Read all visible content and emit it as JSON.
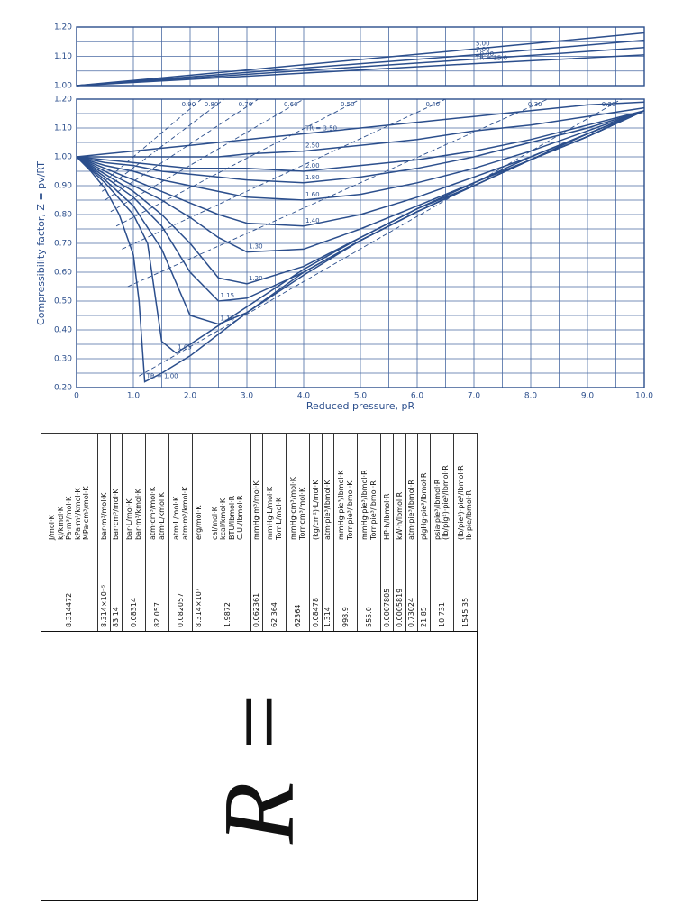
{
  "chart_data": [
    {
      "type": "line",
      "color": "#2b4e8c",
      "xlim": [
        0,
        10
      ],
      "ylim": [
        1.0,
        1.2
      ],
      "yticks": [
        {
          "value": 1.0,
          "label": "1.00"
        },
        {
          "value": 1.1,
          "label": "1.10"
        },
        {
          "value": 1.2,
          "label": "1.20"
        }
      ],
      "series": [
        {
          "name": "5.00",
          "x": [
            0,
            7,
            10
          ],
          "values": [
            1.0,
            1.125,
            1.18
          ]
        },
        {
          "name": "7.00",
          "x": [
            0,
            7,
            10
          ],
          "values": [
            1.0,
            1.105,
            1.155
          ]
        },
        {
          "name": "10.00",
          "x": [
            0,
            7,
            10
          ],
          "values": [
            1.0,
            1.09,
            1.13
          ]
        },
        {
          "name": "TR = 15.0",
          "x": [
            0,
            7,
            10
          ],
          "values": [
            1.0,
            1.075,
            1.105
          ]
        }
      ]
    },
    {
      "type": "line",
      "color": "#2b4e8c",
      "x_label": "Reduced pressure, pR",
      "y_label": "Compressibility factor, Z = pv/RT",
      "xlim": [
        0,
        10
      ],
      "ylim": [
        0.2,
        1.2
      ],
      "xticks": [
        0,
        {
          "value": 1,
          "label": "1.0"
        },
        {
          "value": 2,
          "label": "2.0"
        },
        {
          "value": 3,
          "label": "3.0"
        },
        {
          "value": 4,
          "label": "4.0"
        },
        {
          "value": 5,
          "label": "5.0"
        },
        {
          "value": 6,
          "label": "6.0"
        },
        {
          "value": 7,
          "label": "7.0"
        },
        {
          "value": 8,
          "label": "8.0"
        },
        {
          "value": 9,
          "label": "9.0"
        },
        {
          "value": 10,
          "label": "10.0"
        }
      ],
      "yticks": [
        {
          "value": 0.2,
          "label": "0.20"
        },
        {
          "value": 0.3,
          "label": "0.30"
        },
        {
          "value": 0.4,
          "label": "0.40"
        },
        {
          "value": 0.5,
          "label": "0.50"
        },
        {
          "value": 0.6,
          "label": "0.60"
        },
        {
          "value": 0.7,
          "label": "0.70"
        },
        {
          "value": 0.8,
          "label": "0.80"
        },
        {
          "value": 0.9,
          "label": "0.90"
        },
        {
          "value": 1.0,
          "label": "1.00"
        },
        {
          "value": 1.1,
          "label": "1.10"
        },
        {
          "value": 1.2,
          "label": "1.20"
        }
      ],
      "series": [
        {
          "name": "TR = 1.00",
          "x": [
            0,
            0.25,
            0.5,
            0.75,
            1.0,
            1.1,
            1.2,
            1.5,
            2,
            3,
            4,
            5,
            6,
            7,
            8,
            9,
            10
          ],
          "values": [
            1.0,
            0.95,
            0.89,
            0.8,
            0.66,
            0.5,
            0.22,
            0.25,
            0.31,
            0.46,
            0.6,
            0.71,
            0.81,
            0.9,
            0.99,
            1.08,
            1.16
          ]
        },
        {
          "name": "1.05",
          "x": [
            0,
            0.5,
            1,
            1.25,
            1.5,
            1.75,
            2,
            3,
            4,
            5,
            6,
            7,
            8,
            9,
            10
          ],
          "values": [
            1.0,
            0.91,
            0.8,
            0.7,
            0.36,
            0.32,
            0.35,
            0.48,
            0.61,
            0.72,
            0.82,
            0.91,
            1.0,
            1.08,
            1.16
          ]
        },
        {
          "name": "1.10",
          "x": [
            0,
            0.5,
            1,
            1.5,
            2,
            2.5,
            3,
            4,
            5,
            6,
            7,
            8,
            9,
            10
          ],
          "values": [
            1.0,
            0.92,
            0.83,
            0.68,
            0.45,
            0.42,
            0.46,
            0.59,
            0.71,
            0.81,
            0.9,
            0.99,
            1.07,
            1.16
          ]
        },
        {
          "name": "1.15",
          "x": [
            0,
            0.5,
            1,
            1.5,
            2,
            2.5,
            3,
            4,
            5,
            6,
            7,
            8,
            9,
            10
          ],
          "values": [
            1.0,
            0.93,
            0.86,
            0.76,
            0.6,
            0.5,
            0.51,
            0.6,
            0.71,
            0.81,
            0.9,
            0.99,
            1.07,
            1.16
          ]
        },
        {
          "name": "1.20",
          "x": [
            0,
            0.5,
            1,
            1.5,
            2,
            2.5,
            3,
            4,
            5,
            6,
            7,
            8,
            9,
            10
          ],
          "values": [
            1.0,
            0.94,
            0.88,
            0.8,
            0.7,
            0.58,
            0.56,
            0.62,
            0.72,
            0.82,
            0.9,
            0.99,
            1.07,
            1.16
          ]
        },
        {
          "name": "1.30",
          "x": [
            0,
            0.5,
            1,
            1.5,
            2,
            2.5,
            3,
            4,
            5,
            6,
            7,
            8,
            9,
            10
          ],
          "values": [
            1.0,
            0.95,
            0.9,
            0.85,
            0.79,
            0.72,
            0.67,
            0.68,
            0.75,
            0.83,
            0.91,
            0.99,
            1.07,
            1.16
          ]
        },
        {
          "name": "1.40",
          "x": [
            0,
            0.5,
            1,
            1.5,
            2,
            2.5,
            3,
            4,
            5,
            6,
            7,
            8,
            9,
            10
          ],
          "values": [
            1.0,
            0.96,
            0.92,
            0.88,
            0.84,
            0.8,
            0.77,
            0.76,
            0.8,
            0.86,
            0.93,
            1.0,
            1.08,
            1.16
          ]
        },
        {
          "name": "1.60",
          "x": [
            0,
            0.5,
            1,
            1.5,
            2,
            2.5,
            3,
            4,
            5,
            6,
            7,
            8,
            9,
            10
          ],
          "values": [
            1.0,
            0.97,
            0.95,
            0.92,
            0.9,
            0.88,
            0.86,
            0.85,
            0.87,
            0.91,
            0.96,
            1.02,
            1.09,
            1.16
          ]
        },
        {
          "name": "1.80",
          "x": [
            0,
            0.5,
            1,
            1.5,
            2,
            2.5,
            3,
            4,
            5,
            6,
            7,
            8,
            9,
            10
          ],
          "values": [
            1.0,
            0.98,
            0.97,
            0.95,
            0.94,
            0.93,
            0.92,
            0.91,
            0.93,
            0.96,
            1.0,
            1.05,
            1.1,
            1.16
          ]
        },
        {
          "name": "2.00",
          "x": [
            0,
            0.5,
            1,
            1.5,
            2,
            2.5,
            3,
            4,
            5,
            6,
            7,
            8,
            9,
            10
          ],
          "values": [
            1.0,
            0.99,
            0.98,
            0.97,
            0.96,
            0.96,
            0.96,
            0.95,
            0.97,
            0.99,
            1.02,
            1.06,
            1.11,
            1.16
          ]
        },
        {
          "name": "2.50",
          "x": [
            0,
            0.5,
            1,
            1.5,
            2,
            2.5,
            3,
            4,
            5,
            6,
            7,
            8,
            9,
            10
          ],
          "values": [
            1.0,
            1.0,
            1.0,
            1.0,
            1.0,
            1.0,
            1.01,
            1.02,
            1.04,
            1.06,
            1.09,
            1.11,
            1.14,
            1.17
          ]
        },
        {
          "name": "TR = 3.50",
          "x": [
            0,
            0.5,
            1,
            1.5,
            2,
            2.5,
            3,
            4,
            5,
            6,
            7,
            8,
            9,
            10
          ],
          "values": [
            1.0,
            1.01,
            1.02,
            1.03,
            1.04,
            1.05,
            1.06,
            1.08,
            1.1,
            1.12,
            1.14,
            1.16,
            1.18,
            1.19
          ]
        },
        {
          "name": "0.20",
          "dashed": true,
          "x": [
            1.1,
            9.6
          ],
          "values": [
            0.24,
            1.2
          ]
        },
        {
          "name": "0.30",
          "dashed": true,
          "x": [
            0.9,
            8.3
          ],
          "values": [
            0.55,
            1.2
          ]
        },
        {
          "name": "0.40",
          "dashed": true,
          "x": [
            0.8,
            6.5
          ],
          "values": [
            0.68,
            1.2
          ]
        },
        {
          "name": "0.50",
          "dashed": true,
          "x": [
            0.7,
            5.0
          ],
          "values": [
            0.76,
            1.2
          ]
        },
        {
          "name": "0.60",
          "dashed": true,
          "x": [
            0.6,
            4.0
          ],
          "values": [
            0.81,
            1.2
          ]
        },
        {
          "name": "0.70",
          "dashed": true,
          "x": [
            0.5,
            3.2
          ],
          "values": [
            0.85,
            1.2
          ]
        },
        {
          "name": "0.80",
          "dashed": true,
          "x": [
            0.45,
            2.6
          ],
          "values": [
            0.88,
            1.2
          ]
        },
        {
          "name": "0.90",
          "dashed": true,
          "x": [
            0.4,
            2.2
          ],
          "values": [
            0.9,
            1.2
          ]
        }
      ]
    }
  ],
  "table": {
    "symbol": "R =",
    "rows": [
      {
        "value": "8.314472",
        "units": [
          "J/mol·K",
          "kJ/kmol·K",
          "Pa·m³/mol·K",
          "kPa·m³/kmol·K",
          "MPa·cm³/mol·K"
        ]
      },
      {
        "value": "8.314×10⁻⁵",
        "units": [
          "bar·m³/mol·K"
        ]
      },
      {
        "value": "83.14",
        "units": [
          "bar·cm³/mol·K"
        ]
      },
      {
        "value": "0.08314",
        "units": [
          "bar·L/mol·K",
          "bar·m³/kmol·K"
        ]
      },
      {
        "value": "82.057",
        "units": [
          "atm·cm³/mol·K",
          "atm·L/kmol·K"
        ]
      },
      {
        "value": "0.082057",
        "units": [
          "atm·L/mol·K",
          "atm·m³/kmol·K"
        ]
      },
      {
        "value": "8.314×10⁷",
        "units": [
          "erg/mol·K"
        ]
      },
      {
        "value": "1.9872",
        "units": [
          "cal/mol·K",
          "kcal/kmol·K",
          "BTU/lbmol·R",
          "C.U./lbmol·R"
        ]
      },
      {
        "value": "0.062361",
        "units": [
          "mmHg·m³/mol·K"
        ]
      },
      {
        "value": "62.364",
        "units": [
          "mmHg·L/mol·K",
          "Torr·L/mol·K"
        ]
      },
      {
        "value": "62364",
        "units": [
          "mmHg·cm³/mol·K",
          "Torr·cm³/mol·K"
        ]
      },
      {
        "value": "0.08478",
        "units": [
          "(kg/cm²)·L/mol·K"
        ]
      },
      {
        "value": "1.314",
        "units": [
          "atm·pie³/lbmol·K"
        ]
      },
      {
        "value": "998.9",
        "units": [
          "mmHg·pie³/lbmol·K",
          "Torr·pie³/lbmol·K"
        ]
      },
      {
        "value": "555.0",
        "units": [
          "mmHg·pie³/lbmol·R",
          "Torr·pie³/lbmol·R"
        ]
      },
      {
        "value": "0.0007805",
        "units": [
          "HP·h/lbmol·R"
        ]
      },
      {
        "value": "0.0005819",
        "units": [
          "kW·h/lbmol·R"
        ]
      },
      {
        "value": "0.73024",
        "units": [
          "atm·pie³/lbmol·R"
        ]
      },
      {
        "value": "21.85",
        "units": [
          "plgHg·pie³/lbmol·R"
        ]
      },
      {
        "value": "10.731",
        "units": [
          "psia·pie³/lbmol·R",
          "(lb/plg²)·pie³/lbmol·R"
        ]
      },
      {
        "value": "1545.35",
        "units": [
          "(lb/pie²)·pie³/lbmol·R",
          "lb·pie/lbmol·R"
        ]
      }
    ]
  }
}
